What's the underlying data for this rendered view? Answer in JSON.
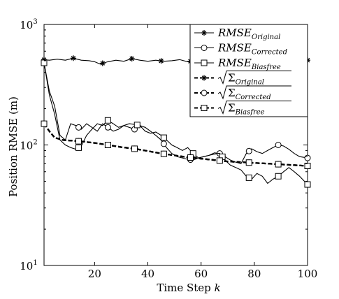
{
  "chart_data": {
    "type": "line",
    "title": "",
    "xlabel": "Time Step",
    "xlabel_var": "k",
    "ylabel": "Position RMSE (m)",
    "y_scale": "log",
    "xlim": [
      1,
      100
    ],
    "ylim": [
      10,
      1000
    ],
    "x_ticks": [
      "20",
      "40",
      "60",
      "80",
      "100"
    ],
    "y_ticks": [
      {
        "base": "10",
        "exp": "1"
      },
      {
        "base": "10",
        "exp": "2"
      },
      {
        "base": "10",
        "exp": "3"
      }
    ],
    "grid": false,
    "legend_position": "top-right",
    "series": [
      {
        "name": "RMSE_Original",
        "label_main": "RMSE",
        "label_sub": "Original",
        "legend_kind": "plain",
        "marker": "star",
        "style": "solid",
        "x": [
          1,
          3,
          6,
          9,
          12,
          15,
          18,
          20,
          22,
          25,
          28,
          31,
          34,
          37,
          40,
          43,
          46,
          49,
          52,
          55,
          58,
          61,
          64,
          67,
          70,
          73,
          76,
          79,
          82,
          85,
          88,
          91,
          94,
          97,
          100
        ],
        "values": [
          510,
          505,
          515,
          505,
          525,
          505,
          500,
          490,
          470,
          490,
          505,
          495,
          520,
          505,
          495,
          505,
          495,
          500,
          510,
          490,
          505,
          500,
          495,
          510,
          500,
          500,
          495,
          505,
          500,
          510,
          500,
          505,
          500,
          495,
          505
        ],
        "marker_x": [
          1,
          12,
          23,
          34,
          45,
          56,
          67,
          78,
          89,
          100
        ]
      },
      {
        "name": "RMSE_Corrected",
        "label_main": "RMSE",
        "label_sub": "Corrected",
        "legend_kind": "plain",
        "marker": "circle",
        "style": "solid",
        "x": [
          1,
          3,
          5,
          7,
          9,
          11,
          13,
          15,
          17,
          19,
          21,
          23,
          25,
          27,
          29,
          31,
          33,
          35,
          37,
          39,
          41,
          43,
          45,
          47,
          49,
          51,
          53,
          55,
          57,
          59,
          61,
          63,
          65,
          67,
          69,
          71,
          73,
          75,
          77,
          79,
          81,
          83,
          85,
          87,
          89,
          91,
          93,
          95,
          97,
          100
        ],
        "values": [
          480,
          280,
          210,
          120,
          110,
          150,
          145,
          135,
          150,
          140,
          130,
          150,
          140,
          130,
          135,
          145,
          140,
          135,
          145,
          140,
          130,
          120,
          110,
          95,
          85,
          80,
          78,
          76,
          75,
          78,
          80,
          82,
          84,
          85,
          80,
          75,
          72,
          70,
          85,
          93,
          88,
          85,
          90,
          95,
          100,
          98,
          92,
          85,
          80,
          78
        ],
        "marker_x": [
          1,
          14,
          25,
          35,
          46,
          56,
          67,
          78,
          89,
          100
        ]
      },
      {
        "name": "RMSE_Biasfree",
        "label_main": "RMSE",
        "label_sub": "Biasfree",
        "legend_kind": "plain",
        "marker": "square",
        "style": "solid",
        "x": [
          1,
          3,
          5,
          7,
          9,
          11,
          13,
          15,
          17,
          19,
          21,
          23,
          25,
          27,
          29,
          31,
          33,
          35,
          37,
          39,
          41,
          43,
          45,
          47,
          49,
          51,
          53,
          55,
          57,
          59,
          61,
          63,
          65,
          67,
          69,
          71,
          73,
          75,
          77,
          79,
          81,
          83,
          85,
          87,
          89,
          91,
          93,
          95,
          97,
          100
        ],
        "values": [
          480,
          260,
          180,
          110,
          100,
          95,
          92,
          98,
          120,
          135,
          150,
          145,
          160,
          150,
          140,
          145,
          150,
          148,
          145,
          130,
          125,
          128,
          120,
          110,
          100,
          95,
          90,
          95,
          85,
          78,
          80,
          82,
          86,
          85,
          75,
          68,
          65,
          62,
          55,
          52,
          58,
          55,
          48,
          52,
          55,
          60,
          65,
          60,
          55,
          47
        ],
        "marker_x": [
          1,
          14,
          25,
          36,
          46,
          57,
          68,
          78,
          89,
          100
        ]
      },
      {
        "name": "Sigma_Original",
        "label_main": "Σ",
        "label_sub": "Original",
        "legend_kind": "sqrt",
        "marker": "star",
        "style": "dashed",
        "x": [
          1,
          3,
          5,
          8,
          10,
          15,
          20,
          25,
          30,
          35,
          40,
          45,
          50,
          55,
          60,
          65,
          70,
          75,
          80,
          85,
          90,
          95,
          100
        ],
        "values": [
          150,
          130,
          115,
          110,
          109,
          107,
          104,
          100,
          96,
          93,
          89,
          85,
          82,
          79,
          77,
          75,
          73,
          72,
          71,
          70,
          69,
          68,
          67
        ],
        "marker_x": [
          1,
          14,
          25,
          35,
          46,
          56,
          67,
          78,
          89,
          100
        ]
      },
      {
        "name": "Sigma_Corrected",
        "label_main": "Σ",
        "label_sub": "Corrected",
        "legend_kind": "sqrt",
        "marker": "circle",
        "style": "dashed",
        "x": [
          1,
          3,
          5,
          8,
          10,
          15,
          20,
          25,
          30,
          35,
          40,
          45,
          50,
          55,
          60,
          65,
          70,
          75,
          80,
          85,
          90,
          95,
          100
        ],
        "values": [
          150,
          130,
          115,
          110,
          109,
          107,
          104,
          100,
          96,
          93,
          89,
          85,
          82,
          79,
          77,
          75,
          73,
          72,
          71,
          70,
          69,
          68,
          67
        ],
        "marker_x": [
          1,
          14,
          25,
          35,
          46,
          56,
          67,
          78,
          89,
          100
        ]
      },
      {
        "name": "Sigma_Biasfree",
        "label_main": "Σ",
        "label_sub": "Biasfree",
        "legend_kind": "sqrt",
        "marker": "square",
        "style": "dashed",
        "x": [
          1,
          3,
          5,
          8,
          10,
          15,
          20,
          25,
          30,
          35,
          40,
          45,
          50,
          55,
          60,
          65,
          70,
          75,
          80,
          85,
          90,
          95,
          100
        ],
        "values": [
          150,
          130,
          115,
          110,
          109,
          107,
          104,
          100,
          96,
          93,
          89,
          85,
          82,
          79,
          77,
          75,
          73,
          72,
          71,
          70,
          69,
          68,
          67
        ],
        "marker_x": [
          1,
          14,
          25,
          35,
          46,
          56,
          67,
          78,
          89,
          100
        ]
      }
    ]
  }
}
